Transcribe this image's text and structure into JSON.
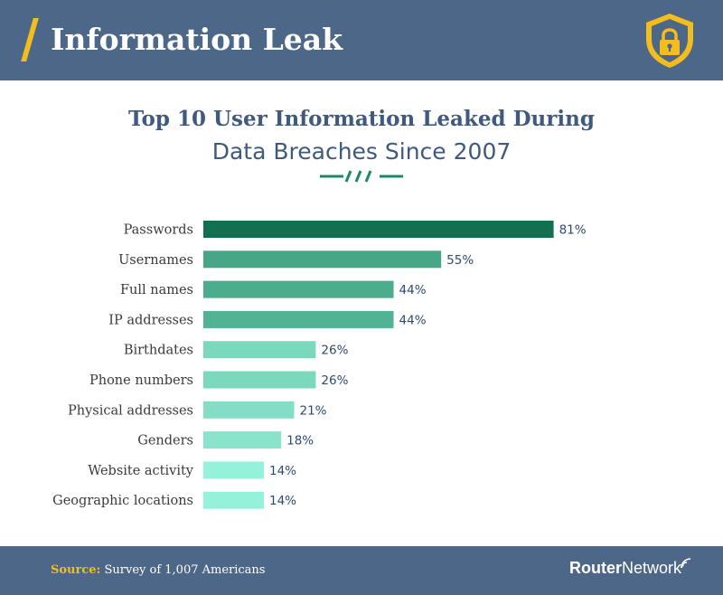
{
  "header": {
    "title": "Information Leak",
    "icon": "shield-lock-icon",
    "accent": "#f2bd1d",
    "background": "#4d6788"
  },
  "chart_data": {
    "type": "bar",
    "orientation": "horizontal",
    "title": "Top 10 User Information Leaked During",
    "subtitle": "Data Breaches Since 2007",
    "categories": [
      "Passwords",
      "Usernames",
      "Full names",
      "IP addresses",
      "Birthdates",
      "Phone numbers",
      "Physical addresses",
      "Genders",
      "Website activity",
      "Geographic locations"
    ],
    "values": [
      81,
      55,
      44,
      44,
      26,
      26,
      21,
      18,
      14,
      14
    ],
    "value_labels": [
      "81%",
      "55%",
      "44%",
      "44%",
      "26%",
      "26%",
      "21%",
      "18%",
      "14%",
      "14%"
    ],
    "unit": "%",
    "colors": [
      "#11704f",
      "#46a685",
      "#4cad8c",
      "#52b394",
      "#7ad8bd",
      "#7ad8bd",
      "#82dfc5",
      "#8ae4cc",
      "#93f2d9",
      "#93f2d9"
    ],
    "grid": false,
    "legend": false
  },
  "footer": {
    "source_label": "Source:",
    "source_text": " Survey of 1,007 Americans",
    "brand_strong": "Router",
    "brand_light": "Network",
    "brand_icon": "wifi-signal-icon"
  }
}
